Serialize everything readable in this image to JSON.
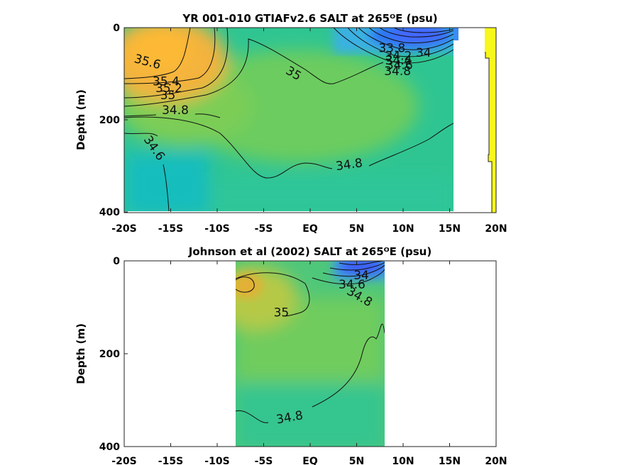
{
  "chart_data": [
    {
      "type": "contour",
      "title": "YR 001-010 GTIAFv2.6 SALT at 265ᴼE (psu)",
      "ylabel": "Depth (m)",
      "xlabel": "",
      "x_ticks": [
        "-20S",
        "-15S",
        "-10S",
        "-5S",
        "EQ",
        "5N",
        "10N",
        "15N",
        "20N"
      ],
      "x_tick_values": [
        -20,
        -15,
        -10,
        -5,
        0,
        5,
        10,
        15,
        20
      ],
      "y_ticks": [
        "0",
        "200",
        "400"
      ],
      "y_tick_values": [
        0,
        200,
        400
      ],
      "xlim": [
        -20,
        20
      ],
      "ylim": [
        0,
        400
      ],
      "y_reversed": true,
      "data_extent_lat": [
        -20,
        15.5
      ],
      "colormap": "parula",
      "contour_labels": [
        {
          "text": "35.6",
          "lat": -17.5,
          "depth": 75
        },
        {
          "text": "35.4",
          "lat": -15.5,
          "depth": 118
        },
        {
          "text": "35.2",
          "lat": -15.2,
          "depth": 132
        },
        {
          "text": "35",
          "lat": -15.3,
          "depth": 148
        },
        {
          "text": "34.8",
          "lat": -14.5,
          "depth": 180
        },
        {
          "text": "34.6",
          "lat": -16.8,
          "depth": 262
        },
        {
          "text": "35",
          "lat": -1.8,
          "depth": 100
        },
        {
          "text": "34.8",
          "lat": 4.2,
          "depth": 298
        },
        {
          "text": "33.8",
          "lat": 8.8,
          "depth": 45
        },
        {
          "text": "34",
          "lat": 12.2,
          "depth": 55
        },
        {
          "text": "34.2",
          "lat": 9.5,
          "depth": 62
        },
        {
          "text": "34.4",
          "lat": 9.5,
          "depth": 72
        },
        {
          "text": "34.6",
          "lat": 9.6,
          "depth": 82
        },
        {
          "text": "34.8",
          "lat": 9.4,
          "depth": 95
        }
      ]
    },
    {
      "type": "contour",
      "title": "Johnson et al (2002) SALT at 265ᴼE (psu)",
      "ylabel": "Depth (m)",
      "xlabel": "",
      "x_ticks": [
        "-20S",
        "-15S",
        "-10S",
        "-5S",
        "EQ",
        "5N",
        "10N",
        "15N",
        "20N"
      ],
      "x_tick_values": [
        -20,
        -15,
        -10,
        -5,
        0,
        5,
        10,
        15,
        20
      ],
      "y_ticks": [
        "0",
        "200",
        "400"
      ],
      "y_tick_values": [
        0,
        200,
        400
      ],
      "xlim": [
        -20,
        20
      ],
      "ylim": [
        0,
        400
      ],
      "y_reversed": true,
      "data_extent_lat": [
        -8,
        8
      ],
      "colormap": "parula",
      "contour_labels": [
        {
          "text": "34",
          "lat": 5.5,
          "depth": 32
        },
        {
          "text": "34.6",
          "lat": 4.5,
          "depth": 52
        },
        {
          "text": "34.8",
          "lat": 5.3,
          "depth": 78
        },
        {
          "text": "35",
          "lat": -3.1,
          "depth": 112
        },
        {
          "text": "34.8",
          "lat": -2.2,
          "depth": 338
        }
      ]
    }
  ]
}
